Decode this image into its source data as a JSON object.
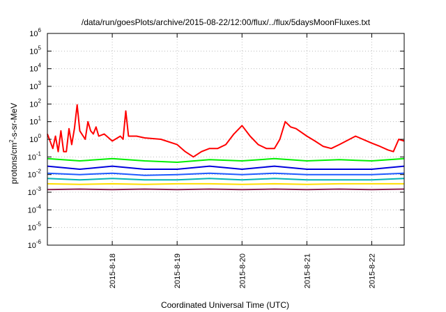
{
  "chart_data": {
    "type": "line",
    "title": "/data/run/goesPlots/archive/2015-08-22/12:00/flux/../flux/5daysMoonFluxes.txt",
    "xlabel": "Coordinated Universal Time (UTC)",
    "ylabel": {
      "base": "protons/cm",
      "exp": "2",
      "rest": "-s-sr-MeV"
    },
    "y_scale": "log",
    "ylim": [
      1e-06,
      1000000.0
    ],
    "y_ticks": [
      {
        "value": 1e-06,
        "exp": "-6"
      },
      {
        "value": 1e-05,
        "exp": "-5"
      },
      {
        "value": 0.0001,
        "exp": "-4"
      },
      {
        "value": 0.001,
        "exp": "-3"
      },
      {
        "value": 0.01,
        "exp": "-2"
      },
      {
        "value": 0.1,
        "exp": "-1"
      },
      {
        "value": 1,
        "exp": "0"
      },
      {
        "value": 10,
        "exp": "1"
      },
      {
        "value": 100,
        "exp": "2"
      },
      {
        "value": 1000,
        "exp": "3"
      },
      {
        "value": 10000,
        "exp": "4"
      },
      {
        "value": 100000,
        "exp": "5"
      },
      {
        "value": 1000000,
        "exp": "6"
      }
    ],
    "y_tick_base": "10",
    "xlim": [
      "2015-08-17T00:00",
      "2015-08-22T12:00"
    ],
    "x_ticks": [
      "2015-8-18",
      "2015-8-19",
      "2015-8-20",
      "2015-8-21",
      "2015-8-22"
    ],
    "x_tick_dates": [
      "2015-08-18",
      "2015-08-19",
      "2015-08-20",
      "2015-08-21",
      "2015-08-22"
    ],
    "grid": true,
    "series": [
      {
        "color": "#ff0000",
        "x": [
          "2015-08-17T00:00",
          "2015-08-17T02:00",
          "2015-08-17T03:00",
          "2015-08-17T04:00",
          "2015-08-17T05:00",
          "2015-08-17T06:00",
          "2015-08-17T07:00",
          "2015-08-17T08:00",
          "2015-08-17T09:00",
          "2015-08-17T10:00",
          "2015-08-17T11:00",
          "2015-08-17T12:00",
          "2015-08-17T14:00",
          "2015-08-17T15:00",
          "2015-08-17T16:00",
          "2015-08-17T17:00",
          "2015-08-17T18:00",
          "2015-08-17T19:00",
          "2015-08-17T21:00",
          "2015-08-18T00:00",
          "2015-08-18T03:00",
          "2015-08-18T04:00",
          "2015-08-18T05:00",
          "2015-08-18T06:00",
          "2015-08-18T09:00",
          "2015-08-18T12:00",
          "2015-08-18T18:00",
          "2015-08-19T00:00",
          "2015-08-19T03:00",
          "2015-08-19T06:00",
          "2015-08-19T09:00",
          "2015-08-19T12:00",
          "2015-08-19T15:00",
          "2015-08-19T18:00",
          "2015-08-19T21:00",
          "2015-08-20T00:00",
          "2015-08-20T03:00",
          "2015-08-20T06:00",
          "2015-08-20T09:00",
          "2015-08-20T12:00",
          "2015-08-20T14:00",
          "2015-08-20T16:00",
          "2015-08-20T18:00",
          "2015-08-20T20:00",
          "2015-08-21T00:00",
          "2015-08-21T03:00",
          "2015-08-21T06:00",
          "2015-08-21T09:00",
          "2015-08-21T12:00",
          "2015-08-21T18:00",
          "2015-08-22T00:00",
          "2015-08-22T03:00",
          "2015-08-22T06:00",
          "2015-08-22T08:00",
          "2015-08-22T10:00",
          "2015-08-22T12:00"
        ],
        "values": [
          2,
          0.3,
          1.5,
          0.2,
          3,
          0.2,
          0.2,
          4,
          0.5,
          4,
          90,
          3,
          1,
          10,
          3,
          2,
          5,
          1.5,
          2,
          0.8,
          1.5,
          1,
          40,
          1.5,
          1.5,
          1.2,
          1,
          0.5,
          0.2,
          0.1,
          0.2,
          0.3,
          0.3,
          0.5,
          2,
          6,
          1.5,
          0.5,
          0.3,
          0.3,
          1,
          10,
          5,
          4,
          1.5,
          0.8,
          0.4,
          0.3,
          0.5,
          1.5,
          0.6,
          0.4,
          0.25,
          0.2,
          1,
          0.8
        ]
      },
      {
        "color": "#00ee00",
        "x": [
          "2015-08-17T00:00",
          "2015-08-17T12:00",
          "2015-08-18T00:00",
          "2015-08-18T12:00",
          "2015-08-19T00:00",
          "2015-08-19T12:00",
          "2015-08-20T00:00",
          "2015-08-20T12:00",
          "2015-08-21T00:00",
          "2015-08-21T12:00",
          "2015-08-22T00:00",
          "2015-08-22T12:00"
        ],
        "values": [
          0.08,
          0.06,
          0.08,
          0.06,
          0.05,
          0.07,
          0.06,
          0.08,
          0.06,
          0.07,
          0.06,
          0.08
        ]
      },
      {
        "color": "#0000dd",
        "x": [
          "2015-08-17T00:00",
          "2015-08-17T12:00",
          "2015-08-18T00:00",
          "2015-08-18T12:00",
          "2015-08-19T00:00",
          "2015-08-19T12:00",
          "2015-08-20T00:00",
          "2015-08-20T12:00",
          "2015-08-21T00:00",
          "2015-08-21T12:00",
          "2015-08-22T00:00",
          "2015-08-22T12:00"
        ],
        "values": [
          0.03,
          0.02,
          0.03,
          0.02,
          0.02,
          0.03,
          0.02,
          0.03,
          0.02,
          0.02,
          0.02,
          0.03
        ]
      },
      {
        "color": "#1e5aff",
        "x": [
          "2015-08-17T00:00",
          "2015-08-17T12:00",
          "2015-08-18T00:00",
          "2015-08-18T12:00",
          "2015-08-19T00:00",
          "2015-08-19T12:00",
          "2015-08-20T00:00",
          "2015-08-20T12:00",
          "2015-08-21T00:00",
          "2015-08-21T12:00",
          "2015-08-22T00:00",
          "2015-08-22T12:00"
        ],
        "values": [
          0.012,
          0.01,
          0.012,
          0.009,
          0.01,
          0.012,
          0.01,
          0.012,
          0.01,
          0.01,
          0.01,
          0.012
        ]
      },
      {
        "color": "#00b4b4",
        "x": [
          "2015-08-17T00:00",
          "2015-08-17T12:00",
          "2015-08-18T00:00",
          "2015-08-18T12:00",
          "2015-08-19T00:00",
          "2015-08-19T12:00",
          "2015-08-20T00:00",
          "2015-08-20T12:00",
          "2015-08-21T00:00",
          "2015-08-21T12:00",
          "2015-08-22T00:00",
          "2015-08-22T12:00"
        ],
        "values": [
          0.006,
          0.005,
          0.006,
          0.005,
          0.005,
          0.006,
          0.005,
          0.006,
          0.005,
          0.005,
          0.005,
          0.006
        ]
      },
      {
        "color": "#ffdd00",
        "x": [
          "2015-08-17T00:00",
          "2015-08-17T12:00",
          "2015-08-18T00:00",
          "2015-08-18T12:00",
          "2015-08-19T00:00",
          "2015-08-19T12:00",
          "2015-08-20T00:00",
          "2015-08-20T12:00",
          "2015-08-21T00:00",
          "2015-08-21T12:00",
          "2015-08-22T00:00",
          "2015-08-22T12:00"
        ],
        "values": [
          0.003,
          0.0028,
          0.003,
          0.0028,
          0.003,
          0.003,
          0.0028,
          0.003,
          0.0028,
          0.003,
          0.003,
          0.003
        ]
      },
      {
        "color": "#8b2252",
        "x": [
          "2015-08-17T00:00",
          "2015-08-17T12:00",
          "2015-08-18T00:00",
          "2015-08-18T12:00",
          "2015-08-19T00:00",
          "2015-08-19T12:00",
          "2015-08-20T00:00",
          "2015-08-20T12:00",
          "2015-08-21T00:00",
          "2015-08-21T12:00",
          "2015-08-22T00:00",
          "2015-08-22T12:00"
        ],
        "values": [
          0.0014,
          0.0015,
          0.0014,
          0.0015,
          0.0014,
          0.0015,
          0.0014,
          0.0015,
          0.0014,
          0.0015,
          0.0014,
          0.0015
        ]
      }
    ]
  }
}
